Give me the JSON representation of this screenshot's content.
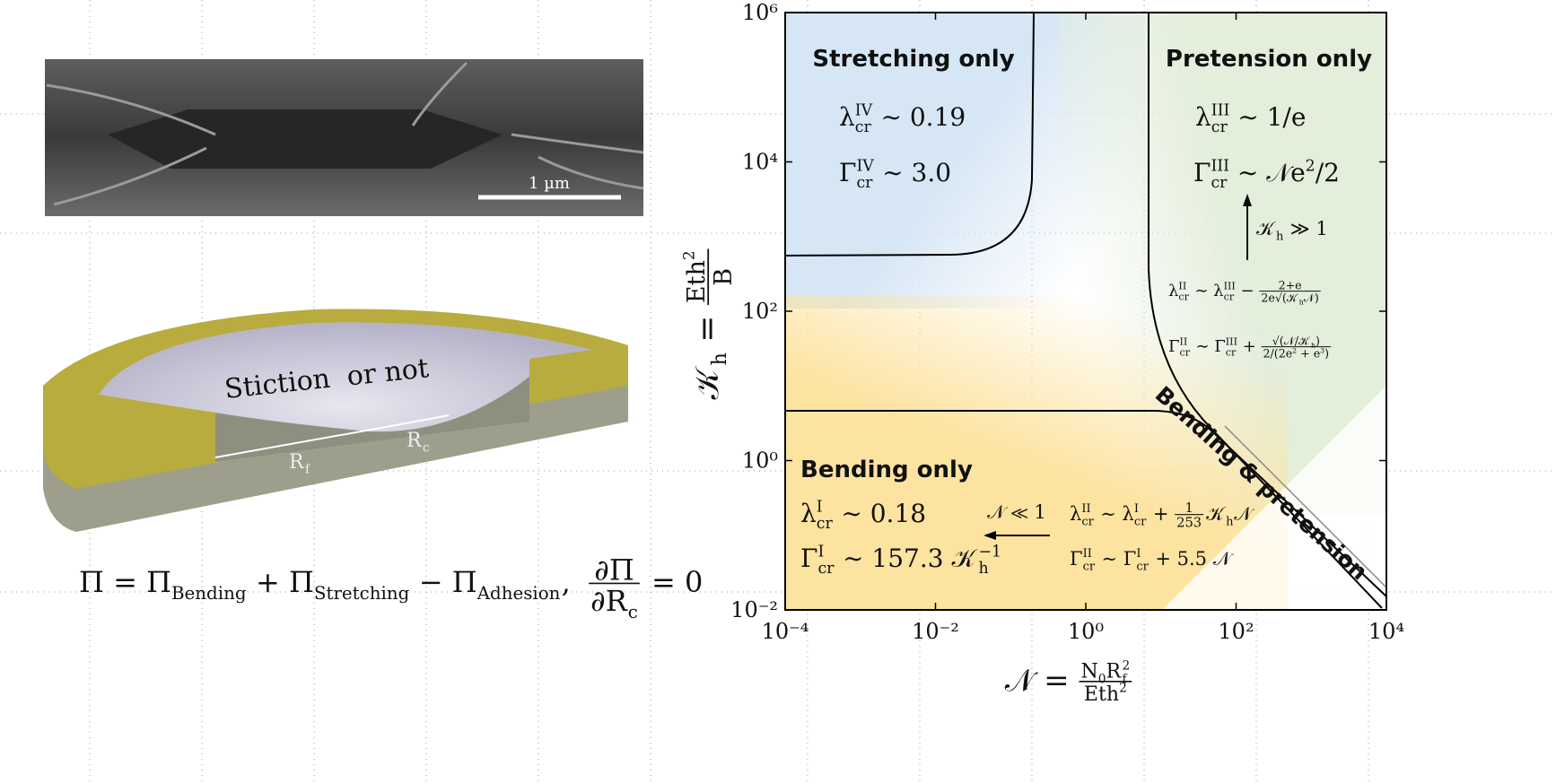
{
  "figure": {
    "scale_bar": "1 µm",
    "schematic_label": "Stiction  or not",
    "radius_labels": [
      [
        {
          "t": "R"
        },
        {
          "t": "f",
          "s": "sub"
        }
      ],
      [
        {
          "t": "R"
        },
        {
          "t": "c",
          "s": "sub"
        }
      ]
    ],
    "energy_equation": [
      {
        "t": "Π = Π"
      },
      {
        "t": "Bending",
        "s": "sub"
      },
      {
        "t": " + Π"
      },
      {
        "t": "Stretching",
        "s": "sub"
      },
      {
        "t": " − Π"
      },
      {
        "t": "Adhesion",
        "s": "sub"
      },
      {
        "t": ",  "
      },
      {
        "s": "frac",
        "num": [
          {
            "t": "∂Π"
          }
        ],
        "den": [
          {
            "t": "∂R"
          },
          {
            "t": "c",
            "s": "sub"
          }
        ]
      },
      {
        "t": " = 0"
      }
    ]
  },
  "chart_data": {
    "type": "regime",
    "xscale": "log",
    "yscale": "log",
    "xlim": [
      0.0001,
      10000
    ],
    "ylim": [
      0.01,
      1000000
    ],
    "xticks": [
      {
        "value": 0.0001,
        "label": "10⁻⁴"
      },
      {
        "value": 0.01,
        "label": "10⁻²"
      },
      {
        "value": 1,
        "label": "10⁰"
      },
      {
        "value": 100,
        "label": "10²"
      },
      {
        "value": 10000,
        "label": "10⁴"
      }
    ],
    "yticks": [
      {
        "value": 0.01,
        "label": "10⁻²"
      },
      {
        "value": 1,
        "label": "10⁰"
      },
      {
        "value": 100,
        "label": "10²"
      },
      {
        "value": 10000,
        "label": "10⁴"
      },
      {
        "value": 1000000,
        "label": "10⁶"
      }
    ],
    "xlabel": [
      {
        "t": "𝒩 = "
      },
      {
        "s": "frac",
        "num": [
          {
            "t": "N"
          },
          {
            "t": "0",
            "s": "sub"
          },
          {
            "t": "R"
          },
          {
            "t": "2",
            "s": "sup"
          },
          {
            "t": "f",
            "s": "sub"
          }
        ],
        "den": [
          {
            "t": "Eth"
          },
          {
            "t": "2",
            "s": "sup"
          }
        ]
      }
    ],
    "ylabel": [
      {
        "t": "𝒦"
      },
      {
        "t": "h",
        "s": "sub"
      },
      {
        "t": " = "
      },
      {
        "s": "frac",
        "num": [
          {
            "t": "Eth"
          },
          {
            "t": "2",
            "s": "sup"
          }
        ],
        "den": [
          {
            "t": "B"
          }
        ]
      }
    ],
    "regions": [
      {
        "name": "Stretching only",
        "color": "#d6e6f5",
        "formulas": [
          [
            {
              "t": "λ"
            },
            {
              "t": "IV",
              "s": "sup"
            },
            {
              "t": "cr",
              "s": "sub"
            },
            {
              "t": " ∼ 0.19"
            }
          ],
          [
            {
              "t": "Γ"
            },
            {
              "t": "IV",
              "s": "sup"
            },
            {
              "t": "cr",
              "s": "sub"
            },
            {
              "t": " ∼ 3.0"
            }
          ]
        ]
      },
      {
        "name": "Pretension only",
        "color": "#e3eedb",
        "formulas": [
          [
            {
              "t": "λ"
            },
            {
              "t": "III",
              "s": "sup"
            },
            {
              "t": "cr",
              "s": "sub"
            },
            {
              "t": " ∼ 1/e"
            }
          ],
          [
            {
              "t": "Γ"
            },
            {
              "t": "III",
              "s": "sup"
            },
            {
              "t": "cr",
              "s": "sub"
            },
            {
              "t": " ∼ 𝒩e"
            },
            {
              "t": "2",
              "s": "sup"
            },
            {
              "t": "/2"
            }
          ]
        ]
      },
      {
        "name": "Bending only",
        "color": "#fde3a0",
        "formulas": [
          [
            {
              "t": "λ"
            },
            {
              "t": "I",
              "s": "sup"
            },
            {
              "t": "cr",
              "s": "sub"
            },
            {
              "t": " ∼ 0.18"
            }
          ],
          [
            {
              "t": "Γ"
            },
            {
              "t": "I",
              "s": "sup"
            },
            {
              "t": "cr",
              "s": "sub"
            },
            {
              "t": " ∼ 157.3 𝒦"
            },
            {
              "t": "−1",
              "s": "sup"
            },
            {
              "t": "h",
              "s": "sub"
            }
          ]
        ]
      },
      {
        "name": "Bending & pretension",
        "color": "#ffffff",
        "formulas": []
      }
    ],
    "transitions": [
      {
        "label": [
          {
            "t": "𝒦"
          },
          {
            "t": "h",
            "s": "sub"
          },
          {
            "t": " ≫ 1"
          }
        ],
        "formulas": [
          [
            {
              "t": "λ"
            },
            {
              "t": "II",
              "s": "sup"
            },
            {
              "t": "cr",
              "s": "sub"
            },
            {
              "t": " ∼ λ"
            },
            {
              "t": "III",
              "s": "sup"
            },
            {
              "t": "cr",
              "s": "sub"
            },
            {
              "t": " − "
            },
            {
              "s": "frac",
              "num": [
                {
                  "t": "2+e"
                }
              ],
              "den": [
                {
                  "t": "2e√(𝒦"
                },
                {
                  "t": "h",
                  "s": "sub"
                },
                {
                  "t": "𝒩)"
                }
              ]
            }
          ],
          [
            {
              "t": "Γ"
            },
            {
              "t": "II",
              "s": "sup"
            },
            {
              "t": "cr",
              "s": "sub"
            },
            {
              "t": " ∼ Γ"
            },
            {
              "t": "III",
              "s": "sup"
            },
            {
              "t": "cr",
              "s": "sub"
            },
            {
              "t": " + "
            },
            {
              "s": "frac",
              "num": [
                {
                  "t": "√(𝒩/𝒦"
                },
                {
                  "t": "h",
                  "s": "sub"
                },
                {
                  "t": ")"
                }
              ],
              "den": [
                {
                  "t": "2/(2e"
                },
                {
                  "t": "2",
                  "s": "sup"
                },
                {
                  "t": " + e"
                },
                {
                  "t": "3",
                  "s": "sup"
                },
                {
                  "t": ")"
                }
              ]
            }
          ]
        ]
      },
      {
        "label": [
          {
            "t": "𝒩 ≪ 1"
          }
        ],
        "formulas": [
          [
            {
              "t": "λ"
            },
            {
              "t": "II",
              "s": "sup"
            },
            {
              "t": "cr",
              "s": "sub"
            },
            {
              "t": " ∼ λ"
            },
            {
              "t": "I",
              "s": "sup"
            },
            {
              "t": "cr",
              "s": "sub"
            },
            {
              "t": " + "
            },
            {
              "s": "frac",
              "num": [
                {
                  "t": "1"
                }
              ],
              "den": [
                {
                  "t": "253"
                }
              ]
            },
            {
              "t": "𝒦"
            },
            {
              "t": "h",
              "s": "sub"
            },
            {
              "t": "𝒩"
            }
          ],
          [
            {
              "t": "Γ"
            },
            {
              "t": "II",
              "s": "sup"
            },
            {
              "t": "cr",
              "s": "sub"
            },
            {
              "t": " ∼ Γ"
            },
            {
              "t": "I",
              "s": "sup"
            },
            {
              "t": "cr",
              "s": "sub"
            },
            {
              "t": " + 5.5 𝒩"
            }
          ]
        ]
      }
    ]
  }
}
